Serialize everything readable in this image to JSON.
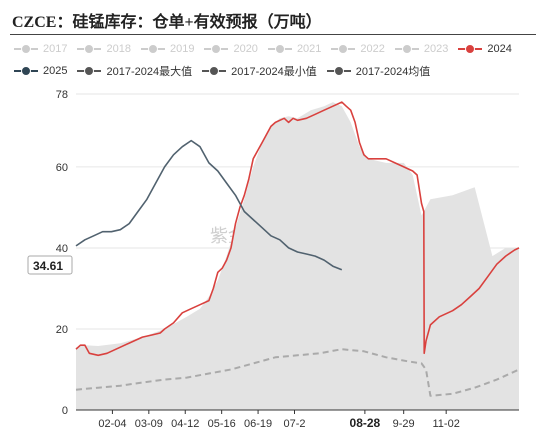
{
  "title": "CZCE：硅锰库存：仓单+有效预报（万吨）",
  "watermark": "紫金天风期货",
  "legend": [
    {
      "label": "2017",
      "color": "#cccccc",
      "active": false
    },
    {
      "label": "2018",
      "color": "#cccccc",
      "active": false
    },
    {
      "label": "2019",
      "color": "#cccccc",
      "active": false
    },
    {
      "label": "2020",
      "color": "#cccccc",
      "active": false
    },
    {
      "label": "2021",
      "color": "#cccccc",
      "active": false
    },
    {
      "label": "2022",
      "color": "#cccccc",
      "active": false
    },
    {
      "label": "2023",
      "color": "#cccccc",
      "active": false
    },
    {
      "label": "2024",
      "color": "#d9413e",
      "active": true
    },
    {
      "label": "2025",
      "color": "#2f4554",
      "active": true
    },
    {
      "label": "2017-2024最大值",
      "color": "#555555",
      "active": true
    },
    {
      "label": "2017-2024最小值",
      "color": "#555555",
      "active": true
    },
    {
      "label": "2017-2024均值",
      "color": "#555555",
      "active": true
    }
  ],
  "value_tag": "34.61",
  "chart_data": {
    "type": "line",
    "x_ticks": [
      "02-04",
      "03-09",
      "04-12",
      "05-16",
      "06-19",
      "07-2",
      "08-28",
      "9-29",
      "11-02"
    ],
    "x_tick_positions": [
      0.0822,
      0.1644,
      0.2466,
      0.3288,
      0.411,
      0.4932,
      0.6521,
      0.7397,
      0.8356
    ],
    "highlight_tick": "08-28",
    "y_ticks": [
      0,
      20,
      40,
      60,
      78
    ],
    "ylim": [
      0,
      78
    ],
    "xlim": [
      0,
      1
    ],
    "series": [
      {
        "name": "2017-2024最大值",
        "color": "#e3e3e3",
        "style": "area",
        "points": [
          [
            0,
            15.5
          ],
          [
            0.02,
            16
          ],
          [
            0.05,
            15.8
          ],
          [
            0.1,
            16.5
          ],
          [
            0.15,
            18
          ],
          [
            0.2,
            20
          ],
          [
            0.25,
            23
          ],
          [
            0.28,
            25
          ],
          [
            0.3,
            28
          ],
          [
            0.32,
            32
          ],
          [
            0.34,
            38
          ],
          [
            0.36,
            45
          ],
          [
            0.38,
            52
          ],
          [
            0.4,
            60
          ],
          [
            0.42,
            66
          ],
          [
            0.44,
            70
          ],
          [
            0.46,
            72
          ],
          [
            0.48,
            72.5
          ],
          [
            0.5,
            72
          ],
          [
            0.53,
            74
          ],
          [
            0.56,
            75
          ],
          [
            0.58,
            76
          ],
          [
            0.6,
            75
          ],
          [
            0.62,
            71
          ],
          [
            0.64,
            65
          ],
          [
            0.66,
            62
          ],
          [
            0.7,
            61
          ],
          [
            0.74,
            61
          ],
          [
            0.76,
            58
          ],
          [
            0.78,
            48
          ],
          [
            0.8,
            52
          ],
          [
            0.85,
            53
          ],
          [
            0.9,
            55
          ],
          [
            0.94,
            38
          ],
          [
            0.97,
            40
          ],
          [
            1.0,
            40
          ]
        ]
      },
      {
        "name": "2017-2024均值",
        "color": "#aaaaaa",
        "style": "dashed",
        "points": [
          [
            0,
            5
          ],
          [
            0.05,
            5.5
          ],
          [
            0.1,
            6
          ],
          [
            0.15,
            6.8
          ],
          [
            0.2,
            7.5
          ],
          [
            0.25,
            8
          ],
          [
            0.3,
            9
          ],
          [
            0.35,
            10
          ],
          [
            0.4,
            11.5
          ],
          [
            0.45,
            13
          ],
          [
            0.5,
            13.5
          ],
          [
            0.55,
            14
          ],
          [
            0.6,
            15
          ],
          [
            0.65,
            14.5
          ],
          [
            0.7,
            13
          ],
          [
            0.75,
            12
          ],
          [
            0.78,
            11.5
          ],
          [
            0.79,
            10
          ],
          [
            0.8,
            3.5
          ],
          [
            0.85,
            4
          ],
          [
            0.9,
            5.5
          ],
          [
            0.95,
            7.5
          ],
          [
            1.0,
            10
          ]
        ]
      },
      {
        "name": "2024",
        "color": "#d9413e",
        "style": "line",
        "points": [
          [
            0,
            15
          ],
          [
            0.01,
            16
          ],
          [
            0.02,
            16
          ],
          [
            0.03,
            14
          ],
          [
            0.05,
            13.5
          ],
          [
            0.07,
            14
          ],
          [
            0.1,
            15.5
          ],
          [
            0.13,
            17
          ],
          [
            0.15,
            18
          ],
          [
            0.17,
            18.5
          ],
          [
            0.19,
            19
          ],
          [
            0.2,
            20
          ],
          [
            0.22,
            21.5
          ],
          [
            0.24,
            24
          ],
          [
            0.26,
            25
          ],
          [
            0.28,
            26
          ],
          [
            0.3,
            27
          ],
          [
            0.31,
            30
          ],
          [
            0.32,
            34
          ],
          [
            0.33,
            35
          ],
          [
            0.34,
            37
          ],
          [
            0.35,
            40
          ],
          [
            0.36,
            46
          ],
          [
            0.37,
            50
          ],
          [
            0.38,
            53
          ],
          [
            0.39,
            57
          ],
          [
            0.4,
            62
          ],
          [
            0.41,
            64
          ],
          [
            0.42,
            66
          ],
          [
            0.43,
            68
          ],
          [
            0.44,
            70
          ],
          [
            0.45,
            71
          ],
          [
            0.46,
            71.5
          ],
          [
            0.47,
            72
          ],
          [
            0.48,
            71
          ],
          [
            0.49,
            72
          ],
          [
            0.5,
            71.5
          ],
          [
            0.52,
            72
          ],
          [
            0.54,
            73
          ],
          [
            0.56,
            74
          ],
          [
            0.58,
            75
          ],
          [
            0.6,
            76
          ],
          [
            0.61,
            75
          ],
          [
            0.62,
            74
          ],
          [
            0.63,
            71
          ],
          [
            0.64,
            66
          ],
          [
            0.65,
            63
          ],
          [
            0.66,
            62
          ],
          [
            0.68,
            62
          ],
          [
            0.7,
            62
          ],
          [
            0.72,
            61
          ],
          [
            0.74,
            60
          ],
          [
            0.76,
            59
          ],
          [
            0.77,
            58
          ],
          [
            0.78,
            51
          ],
          [
            0.785,
            49
          ],
          [
            0.786,
            14
          ],
          [
            0.79,
            17
          ],
          [
            0.8,
            21
          ],
          [
            0.82,
            23
          ],
          [
            0.85,
            24.5
          ],
          [
            0.87,
            26
          ],
          [
            0.89,
            28
          ],
          [
            0.91,
            30
          ],
          [
            0.93,
            33
          ],
          [
            0.95,
            36
          ],
          [
            0.97,
            38
          ],
          [
            0.99,
            39.5
          ],
          [
            1.0,
            40
          ]
        ]
      },
      {
        "name": "2025",
        "color": "#51626f",
        "style": "line",
        "points": [
          [
            0,
            40.5
          ],
          [
            0.02,
            42
          ],
          [
            0.04,
            43
          ],
          [
            0.06,
            44
          ],
          [
            0.08,
            44
          ],
          [
            0.1,
            44.5
          ],
          [
            0.12,
            46
          ],
          [
            0.14,
            49
          ],
          [
            0.16,
            52
          ],
          [
            0.18,
            56
          ],
          [
            0.2,
            60
          ],
          [
            0.22,
            63
          ],
          [
            0.24,
            65
          ],
          [
            0.26,
            66.5
          ],
          [
            0.28,
            65
          ],
          [
            0.3,
            61
          ],
          [
            0.32,
            59
          ],
          [
            0.34,
            56
          ],
          [
            0.36,
            53
          ],
          [
            0.38,
            49
          ],
          [
            0.4,
            47
          ],
          [
            0.42,
            45
          ],
          [
            0.44,
            43
          ],
          [
            0.46,
            42
          ],
          [
            0.48,
            40
          ],
          [
            0.5,
            39
          ],
          [
            0.52,
            38.5
          ],
          [
            0.54,
            38
          ],
          [
            0.56,
            37
          ],
          [
            0.58,
            35.5
          ],
          [
            0.6,
            34.61
          ]
        ]
      }
    ]
  }
}
